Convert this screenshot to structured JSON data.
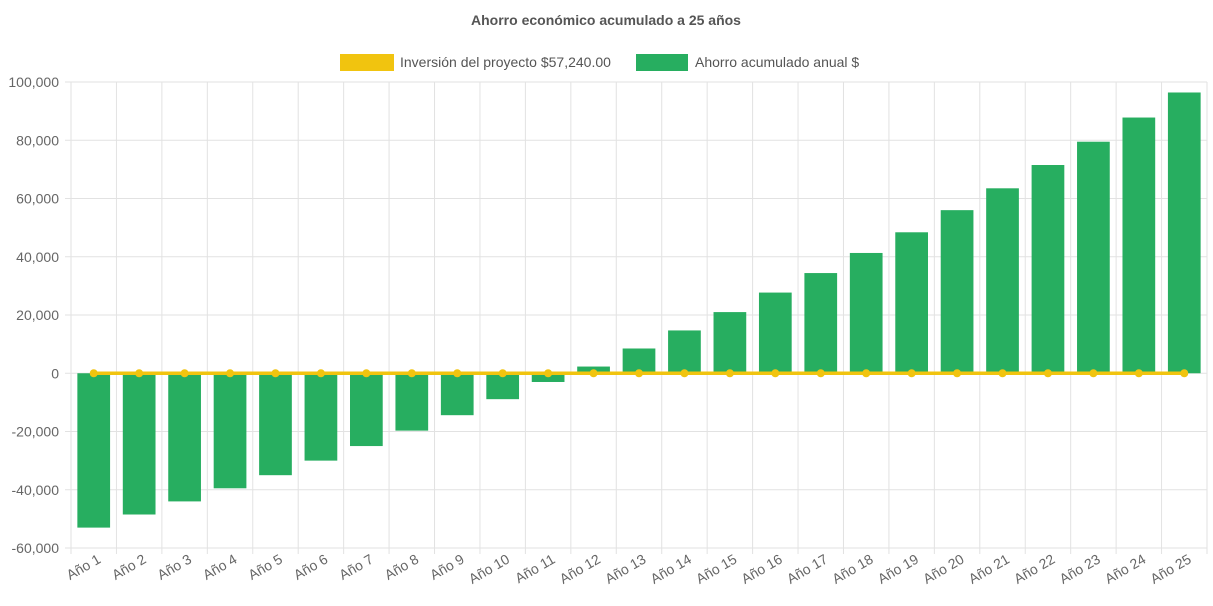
{
  "chart_data": {
    "type": "bar",
    "title": "Ahorro económico acumulado a 25 años",
    "categories": [
      "Año 1",
      "Año 2",
      "Año 3",
      "Año 4",
      "Año 5",
      "Año 6",
      "Año 7",
      "Año 8",
      "Año 9",
      "Año 10",
      "Año 11",
      "Año 12",
      "Año 13",
      "Año 14",
      "Año 15",
      "Año 16",
      "Año 17",
      "Año 18",
      "Año 19",
      "Año 20",
      "Año 21",
      "Año 22",
      "Año 23",
      "Año 24",
      "Año 25"
    ],
    "series": [
      {
        "name": "Inversión del proyecto $57,240.00",
        "type": "line",
        "color": "#f1c40f",
        "values": [
          0,
          0,
          0,
          0,
          0,
          0,
          0,
          0,
          0,
          0,
          0,
          0,
          0,
          0,
          0,
          0,
          0,
          0,
          0,
          0,
          0,
          0,
          0,
          0,
          0
        ]
      },
      {
        "name": "Ahorro acumulado anual $",
        "type": "bar",
        "color": "#27ae60",
        "values": [
          -53000,
          -48500,
          -44000,
          -39500,
          -35000,
          -30000,
          -25000,
          -19700,
          -14400,
          -8900,
          -3000,
          2300,
          8500,
          14700,
          21000,
          27700,
          34400,
          41300,
          48400,
          56000,
          63500,
          71500,
          79500,
          87800,
          96400
        ]
      }
    ],
    "ylim": [
      -60000,
      100000
    ],
    "yticks": [
      "100,000",
      "80,000",
      "60,000",
      "40,000",
      "20,000",
      "0",
      "-20,000",
      "-40,000",
      "-60,000"
    ],
    "ytick_values": [
      100000,
      80000,
      60000,
      40000,
      20000,
      0,
      -20000,
      -40000,
      -60000
    ],
    "grid": true,
    "legend_position": "top"
  }
}
